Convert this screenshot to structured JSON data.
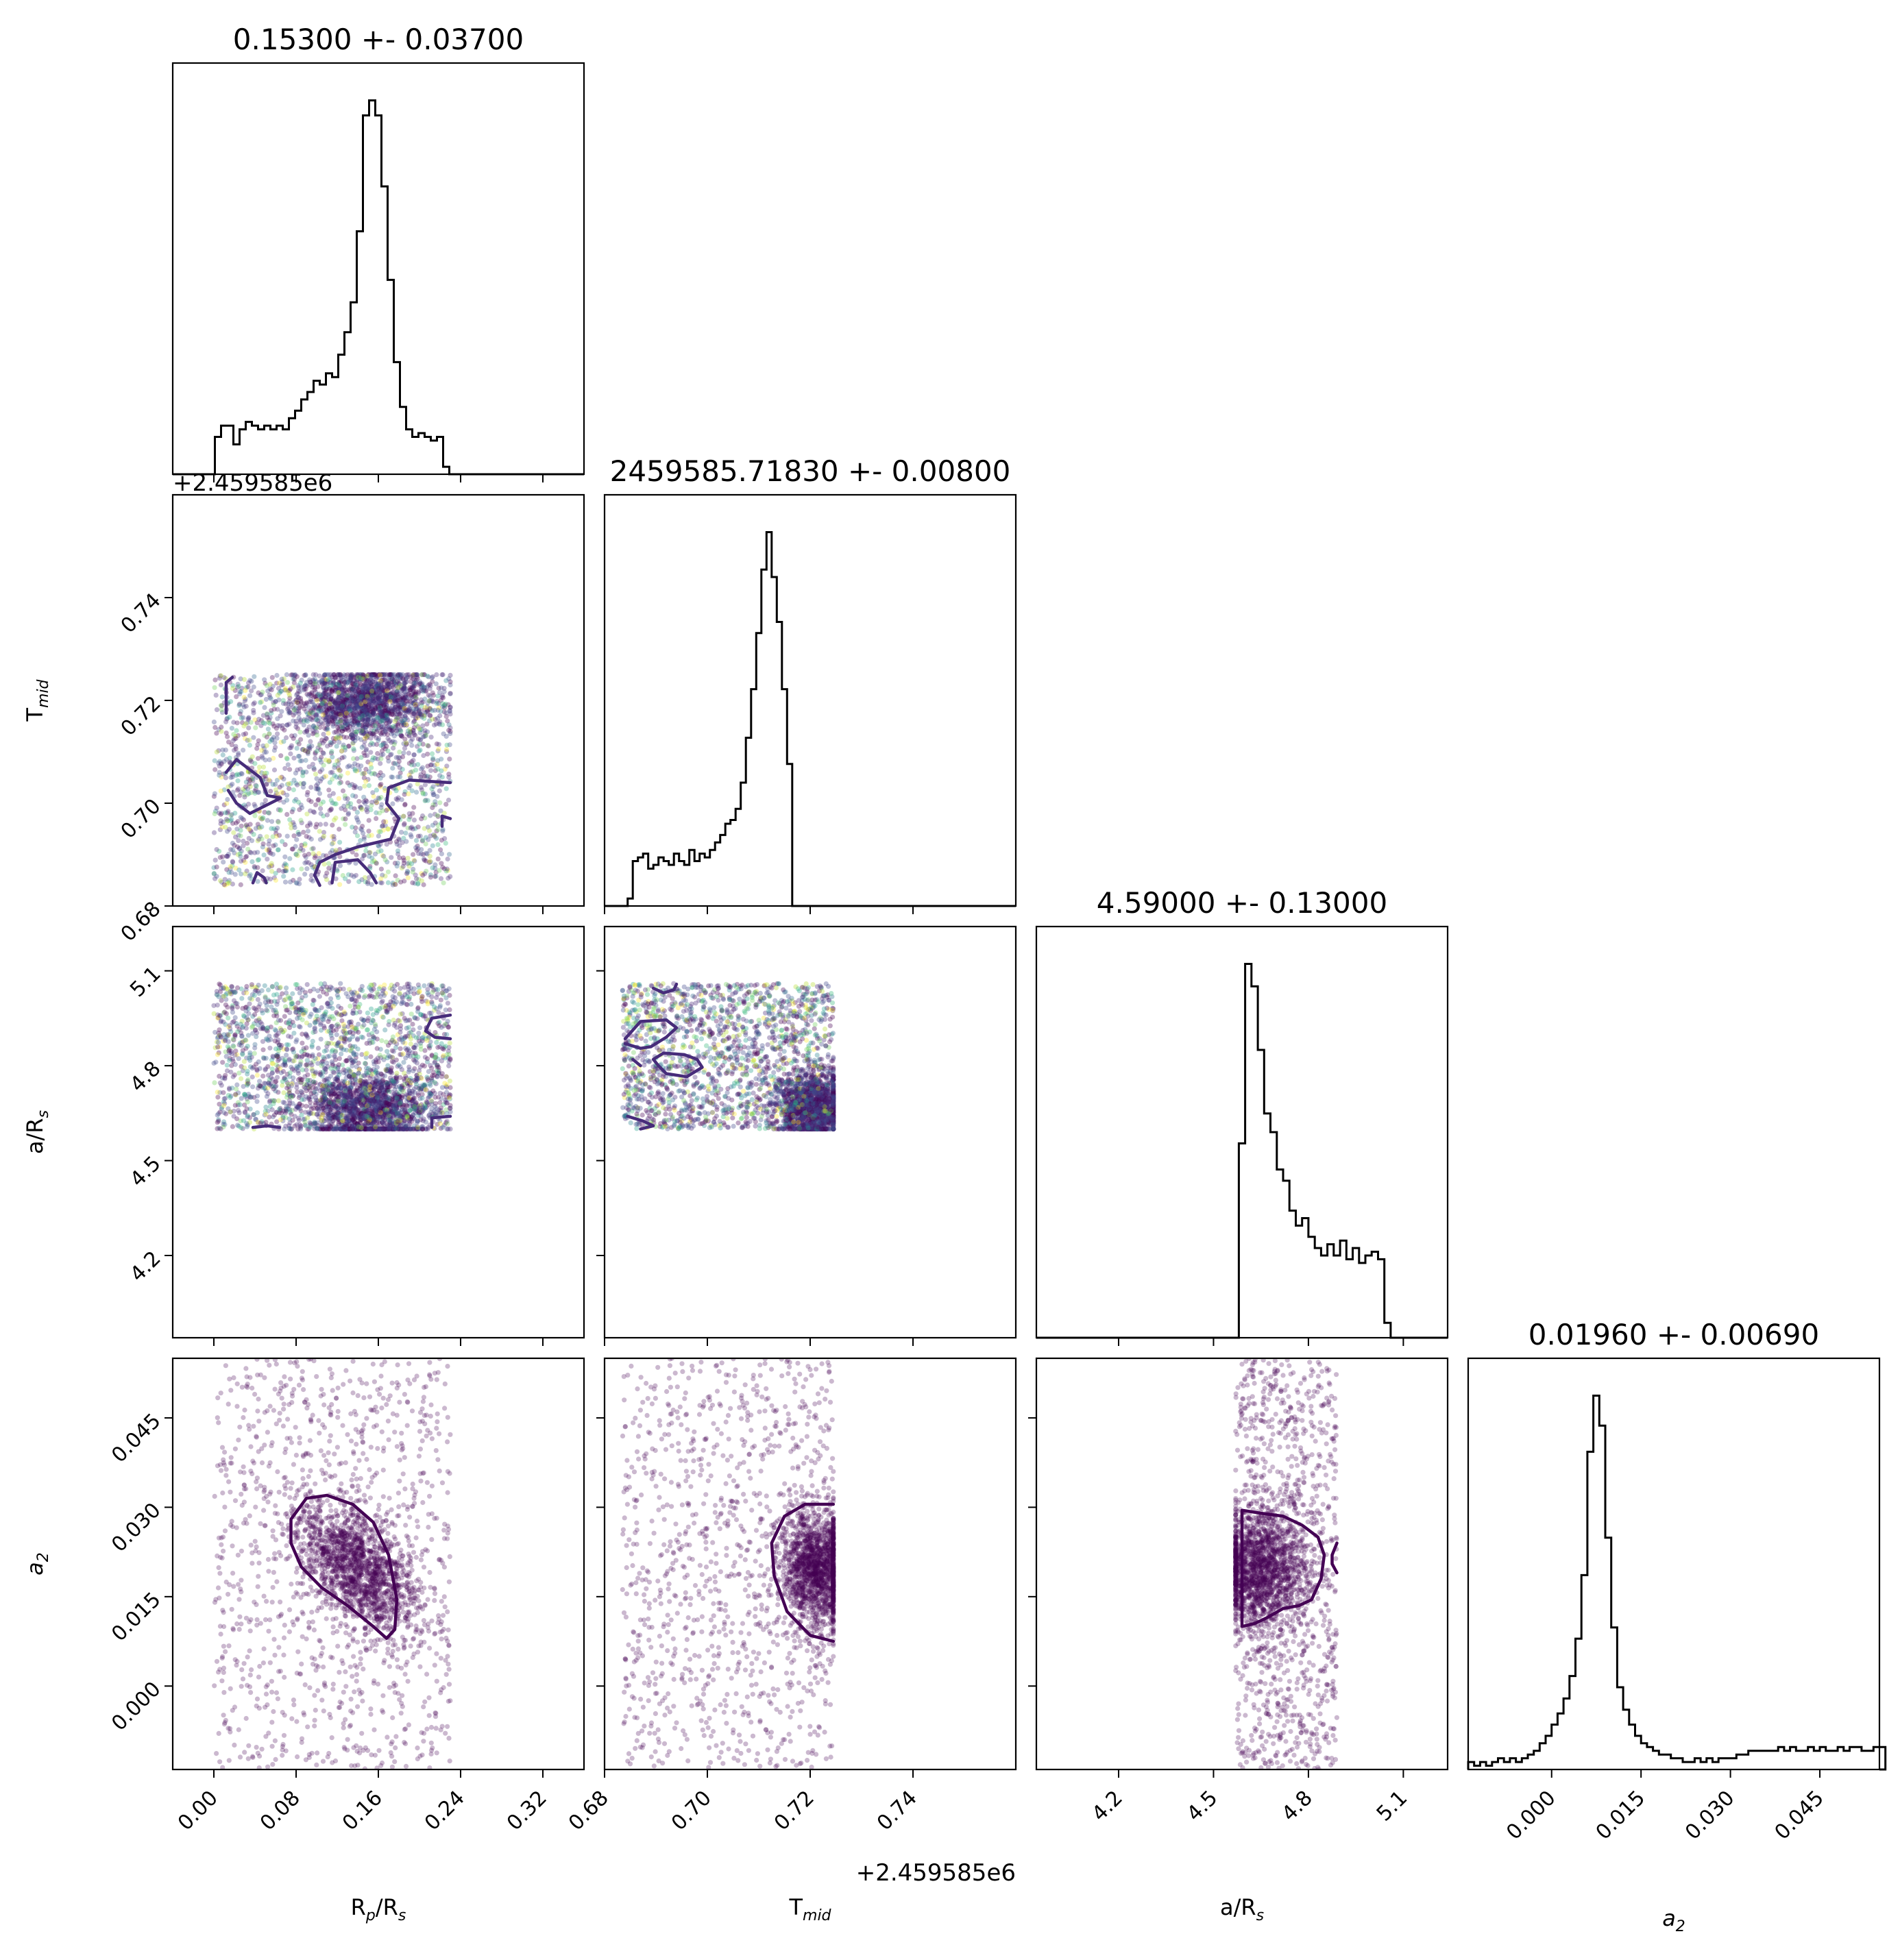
{
  "chart_data": {
    "type": "scatter",
    "layout": "corner",
    "parameters": [
      {
        "key": "rprs",
        "label": "R",
        "label_sub": "p",
        "label_tail": "/R",
        "label_sub2": "s",
        "italic": false,
        "range": [
          -0.04,
          0.36
        ],
        "ticks": [
          0.0,
          0.08,
          0.16,
          0.24,
          0.32
        ],
        "tick_labels": [
          "0.00",
          "0.08",
          "0.16",
          "0.24",
          "0.32"
        ],
        "title": "0.15300 +- 0.03700",
        "offset": "+2.459585e6"
      },
      {
        "key": "tmid",
        "label": "T",
        "label_sub": "mid",
        "label_tail": "",
        "label_sub2": "",
        "italic": false,
        "range": [
          0.68,
          0.76
        ],
        "ticks": [
          0.68,
          0.7,
          0.72,
          0.74
        ],
        "tick_labels": [
          "0.68",
          "0.70",
          "0.72",
          "0.74"
        ],
        "title": "2459585.71830 +- 0.00800",
        "offset": "+2.459585e6"
      },
      {
        "key": "ars",
        "label": "a/R",
        "label_sub": "s",
        "label_tail": "",
        "label_sub2": "",
        "italic": false,
        "range": [
          3.94,
          5.24
        ],
        "ticks": [
          4.2,
          4.5,
          4.8,
          5.1
        ],
        "tick_labels": [
          "4.2",
          "4.5",
          "4.8",
          "5.1"
        ],
        "title": "4.59000 +- 0.13000",
        "offset": ""
      },
      {
        "key": "a2",
        "label": "a",
        "label_sub": "2",
        "label_tail": "",
        "label_sub2": "",
        "italic": true,
        "range": [
          -0.014,
          0.055
        ],
        "ticks": [
          0.0,
          0.015,
          0.03,
          0.045
        ],
        "tick_labels": [
          "0.000",
          "0.015",
          "0.030",
          "0.045"
        ],
        "title": "0.01960 +- 0.00690",
        "offset": ""
      }
    ],
    "histograms": [
      {
        "param": "rprs",
        "x0": -0.005,
        "bin_width": 0.006,
        "counts": [
          0.0,
          0.1,
          0.13,
          0.13,
          0.08,
          0.12,
          0.14,
          0.13,
          0.12,
          0.13,
          0.12,
          0.13,
          0.12,
          0.15,
          0.17,
          0.2,
          0.22,
          0.25,
          0.24,
          0.27,
          0.26,
          0.32,
          0.38,
          0.46,
          0.65,
          0.96,
          1.0,
          0.96,
          0.77,
          0.52,
          0.3,
          0.18,
          0.12,
          0.1,
          0.11,
          0.1,
          0.09,
          0.1,
          0.02,
          0.0
        ],
        "ymax_factor": 1.1
      },
      {
        "param": "tmid",
        "x0": 0.6835,
        "bin_width": 0.001,
        "counts": [
          0.0,
          0.02,
          0.12,
          0.13,
          0.14,
          0.1,
          0.11,
          0.13,
          0.12,
          0.11,
          0.14,
          0.12,
          0.11,
          0.15,
          0.12,
          0.14,
          0.13,
          0.15,
          0.17,
          0.19,
          0.22,
          0.23,
          0.26,
          0.33,
          0.45,
          0.58,
          0.73,
          0.9,
          1.0,
          0.88,
          0.76,
          0.58,
          0.38,
          0.0
        ],
        "ymax_factor": 1.1
      },
      {
        "param": "ars",
        "x0": 4.58,
        "bin_width": 0.02,
        "counts": [
          0.52,
          1.0,
          0.94,
          0.77,
          0.6,
          0.55,
          0.45,
          0.42,
          0.34,
          0.3,
          0.32,
          0.27,
          0.24,
          0.22,
          0.25,
          0.22,
          0.26,
          0.21,
          0.24,
          0.2,
          0.22,
          0.23,
          0.21,
          0.04
        ],
        "ymax_factor": 1.1
      },
      {
        "param": "a2",
        "x0": -0.014,
        "bin_width": 0.001,
        "counts": [
          0.02,
          0.01,
          0.02,
          0.01,
          0.02,
          0.03,
          0.02,
          0.03,
          0.02,
          0.03,
          0.04,
          0.05,
          0.07,
          0.09,
          0.12,
          0.15,
          0.19,
          0.25,
          0.35,
          0.52,
          0.85,
          1.0,
          0.92,
          0.62,
          0.38,
          0.22,
          0.16,
          0.12,
          0.09,
          0.07,
          0.06,
          0.05,
          0.04,
          0.04,
          0.03,
          0.03,
          0.02,
          0.02,
          0.03,
          0.02,
          0.03,
          0.02,
          0.03,
          0.03,
          0.03,
          0.04,
          0.04,
          0.05,
          0.05,
          0.05,
          0.05,
          0.05,
          0.06,
          0.05,
          0.06,
          0.05,
          0.05,
          0.06,
          0.05,
          0.06,
          0.05,
          0.05,
          0.06,
          0.05,
          0.06,
          0.06,
          0.05,
          0.05,
          0.06,
          0.06
        ],
        "ymax_factor": 1.1
      }
    ],
    "scatter_panels": [
      {
        "x": "rprs",
        "y": "tmid",
        "n": 3200,
        "seed": 11,
        "uniform_x": [
          0.0,
          0.23
        ],
        "uniform_y": [
          0.684,
          0.725
        ],
        "cluster": {
          "cx": 0.148,
          "cy": 0.7195,
          "sx": 0.032,
          "sy": 0.0035,
          "frac": 0.45
        },
        "colors": [
          "#440154",
          "#482878",
          "#3e4989",
          "#31688e",
          "#26828e",
          "#1f9e89",
          "#35b779",
          "#6ece58",
          "#b5de2b",
          "#fde725"
        ],
        "alpha": 0.35,
        "contours": [
          [
            [
              0.012,
              0.7175
            ],
            [
              0.012,
              0.7235
            ],
            [
              0.018,
              0.7245
            ]
          ],
          [
            [
              0.012,
              0.706
            ],
            [
              0.022,
              0.7085
            ],
            [
              0.045,
              0.705
            ],
            [
              0.052,
              0.7015
            ],
            [
              0.065,
              0.701
            ],
            [
              0.05,
              0.6995
            ],
            [
              0.035,
              0.698
            ],
            [
              0.022,
              0.7
            ],
            [
              0.014,
              0.7025
            ]
          ],
          [
            [
              0.23,
              0.704
            ],
            [
              0.19,
              0.7045
            ],
            [
              0.17,
              0.703
            ],
            [
              0.168,
              0.7
            ],
            [
              0.18,
              0.697
            ],
            [
              0.172,
              0.693
            ],
            [
              0.14,
              0.6915
            ],
            [
              0.118,
              0.69
            ],
            [
              0.103,
              0.6885
            ],
            [
              0.098,
              0.686
            ],
            [
              0.103,
              0.684
            ]
          ],
          [
            [
              0.23,
              0.697
            ],
            [
              0.222,
              0.6975
            ],
            [
              0.222,
              0.6955
            ]
          ],
          [
            [
              0.038,
              0.6845
            ],
            [
              0.042,
              0.6865
            ],
            [
              0.049,
              0.6855
            ],
            [
              0.051,
              0.6845
            ]
          ],
          [
            [
              0.115,
              0.6845
            ],
            [
              0.118,
              0.6885
            ],
            [
              0.14,
              0.689
            ],
            [
              0.152,
              0.6865
            ],
            [
              0.158,
              0.6845
            ]
          ]
        ]
      },
      {
        "x": "rprs",
        "y": "ars",
        "n": 3200,
        "seed": 23,
        "uniform_x": [
          0.0,
          0.23
        ],
        "uniform_y": [
          4.6,
          5.06
        ],
        "cluster": {
          "cx": 0.15,
          "cy": 4.66,
          "sx": 0.03,
          "sy": 0.06,
          "frac": 0.45
        },
        "colors": [
          "#440154",
          "#482878",
          "#3e4989",
          "#31688e",
          "#26828e",
          "#1f9e89",
          "#35b779",
          "#6ece58",
          "#b5de2b",
          "#fde725"
        ],
        "alpha": 0.35,
        "contours": [
          [
            [
              0.23,
              4.96
            ],
            [
              0.212,
              4.95
            ],
            [
              0.206,
              4.91
            ],
            [
              0.215,
              4.89
            ],
            [
              0.23,
              4.885
            ]
          ],
          [
            [
              0.23,
              4.64
            ],
            [
              0.212,
              4.635
            ],
            [
              0.212,
              4.605
            ]
          ],
          [
            [
              0.038,
              4.605
            ],
            [
              0.052,
              4.61
            ],
            [
              0.064,
              4.605
            ]
          ]
        ]
      },
      {
        "x": "tmid",
        "y": "ars",
        "n": 3200,
        "seed": 37,
        "uniform_x": [
          0.6835,
          0.7245
        ],
        "uniform_y": [
          4.6,
          5.06
        ],
        "cluster": {
          "cx": 0.7205,
          "cy": 4.67,
          "sx": 0.0035,
          "sy": 0.055,
          "frac": 0.45
        },
        "colors": [
          "#440154",
          "#482878",
          "#3e4989",
          "#31688e",
          "#26828e",
          "#1f9e89",
          "#35b779",
          "#6ece58",
          "#b5de2b",
          "#fde725"
        ],
        "alpha": 0.35,
        "contours": [
          [
            [
              0.6895,
              5.045
            ],
            [
              0.6915,
              5.03
            ],
            [
              0.6935,
              5.04
            ],
            [
              0.694,
              5.058
            ]
          ],
          [
            [
              0.684,
              4.885
            ],
            [
              0.687,
              4.94
            ],
            [
              0.692,
              4.945
            ],
            [
              0.694,
              4.92
            ],
            [
              0.692,
              4.89
            ],
            [
              0.689,
              4.86
            ],
            [
              0.687,
              4.855
            ],
            [
              0.684,
              4.87
            ]
          ],
          [
            [
              0.6895,
              4.82
            ],
            [
              0.6915,
              4.84
            ],
            [
              0.6955,
              4.835
            ],
            [
              0.698,
              4.82
            ],
            [
              0.699,
              4.795
            ],
            [
              0.696,
              4.765
            ],
            [
              0.692,
              4.775
            ],
            [
              0.6905,
              4.8
            ],
            [
              0.6895,
              4.82
            ]
          ],
          [
            [
              0.6845,
              4.64
            ],
            [
              0.6875,
              4.625
            ],
            [
              0.6895,
              4.61
            ],
            [
              0.687,
              4.6
            ]
          ],
          [
            [
              0.6855,
              4.82
            ],
            [
              0.687,
              4.8
            ]
          ]
        ]
      },
      {
        "x": "rprs",
        "y": "a2",
        "n": 2600,
        "seed": 41,
        "uniform_x": [
          0.0,
          0.23
        ],
        "uniform_y": [
          -0.014,
          0.055
        ],
        "cluster": {
          "cx": 0.14,
          "cy": 0.02,
          "sx": 0.03,
          "sy": 0.0055,
          "frac": 0.6,
          "corr": -0.55
        },
        "colors": [
          "#440154"
        ],
        "alpha": 0.28,
        "contours": [
          [
            [
              0.075,
              0.028
            ],
            [
              0.09,
              0.0315
            ],
            [
              0.11,
              0.032
            ],
            [
              0.135,
              0.0305
            ],
            [
              0.155,
              0.0275
            ],
            [
              0.17,
              0.022
            ],
            [
              0.178,
              0.0145
            ],
            [
              0.176,
              0.0095
            ],
            [
              0.168,
              0.008
            ],
            [
              0.155,
              0.01
            ],
            [
              0.13,
              0.0135
            ],
            [
              0.105,
              0.0165
            ],
            [
              0.085,
              0.02
            ],
            [
              0.075,
              0.024
            ],
            [
              0.075,
              0.028
            ]
          ]
        ]
      },
      {
        "x": "tmid",
        "y": "a2",
        "n": 2600,
        "seed": 53,
        "uniform_x": [
          0.6835,
          0.7245
        ],
        "uniform_y": [
          -0.014,
          0.055
        ],
        "cluster": {
          "cx": 0.7215,
          "cy": 0.0195,
          "sx": 0.0035,
          "sy": 0.005,
          "frac": 0.6
        },
        "colors": [
          "#440154"
        ],
        "alpha": 0.28,
        "contours": [
          [
            [
              0.7245,
              0.0305
            ],
            [
              0.719,
              0.0305
            ],
            [
              0.715,
              0.0285
            ],
            [
              0.7125,
              0.024
            ],
            [
              0.713,
              0.0185
            ],
            [
              0.7155,
              0.0125
            ],
            [
              0.72,
              0.0085
            ],
            [
              0.7245,
              0.0075
            ]
          ]
        ]
      },
      {
        "x": "ars",
        "y": "a2",
        "n": 2600,
        "seed": 67,
        "uniform_x": [
          4.57,
          4.89
        ],
        "uniform_y": [
          -0.014,
          0.055
        ],
        "cluster": {
          "cx": 4.65,
          "cy": 0.0195,
          "sx": 0.07,
          "sy": 0.005,
          "frac": 0.6
        },
        "colors": [
          "#440154"
        ],
        "alpha": 0.28,
        "contours": [
          [
            [
              4.59,
              0.0295
            ],
            [
              4.65,
              0.029
            ],
            [
              4.72,
              0.0285
            ],
            [
              4.78,
              0.027
            ],
            [
              4.83,
              0.025
            ],
            [
              4.85,
              0.022
            ],
            [
              4.84,
              0.018
            ],
            [
              4.81,
              0.0145
            ],
            [
              4.77,
              0.0135
            ],
            [
              4.72,
              0.013
            ],
            [
              4.67,
              0.0115
            ],
            [
              4.63,
              0.0105
            ],
            [
              4.59,
              0.01
            ],
            [
              4.59,
              0.0295
            ]
          ],
          [
            [
              4.89,
              0.024
            ],
            [
              4.875,
              0.022
            ],
            [
              4.875,
              0.0205
            ],
            [
              4.89,
              0.019
            ]
          ]
        ]
      }
    ]
  }
}
